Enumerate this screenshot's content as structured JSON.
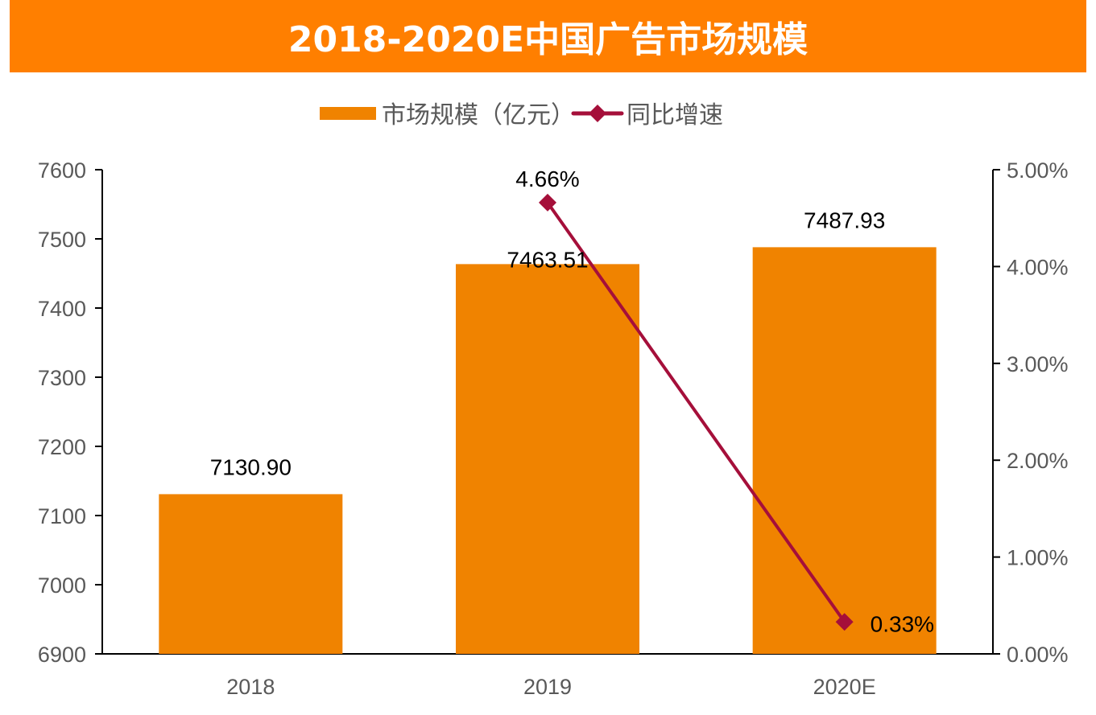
{
  "chart_data": {
    "type": "bar+line",
    "title": "2018-2020E中国广告市场规模",
    "categories": [
      "2018",
      "2019",
      "2020E"
    ],
    "series": [
      {
        "name": "市场规模（亿元）",
        "type": "bar",
        "axis": "left",
        "values": [
          7130.9,
          7463.51,
          7487.93
        ],
        "labels": [
          "7130.90",
          "7463.51",
          "7487.93"
        ],
        "color": "#F08300"
      },
      {
        "name": "同比增速",
        "type": "line",
        "axis": "right",
        "values": [
          null,
          4.66,
          0.33
        ],
        "labels": [
          "",
          "4.66%",
          "0.33%"
        ],
        "color": "#A50F3A"
      }
    ],
    "y_left": {
      "range": [
        6900,
        7600
      ],
      "ticks": [
        "6900",
        "7000",
        "7100",
        "7200",
        "7300",
        "7400",
        "7500",
        "7600"
      ]
    },
    "y_right": {
      "range": [
        0,
        5
      ],
      "ticks": [
        "0.00%",
        "1.00%",
        "2.00%",
        "3.00%",
        "4.00%",
        "5.00%"
      ]
    },
    "legend_placement": "top",
    "grid": false
  }
}
